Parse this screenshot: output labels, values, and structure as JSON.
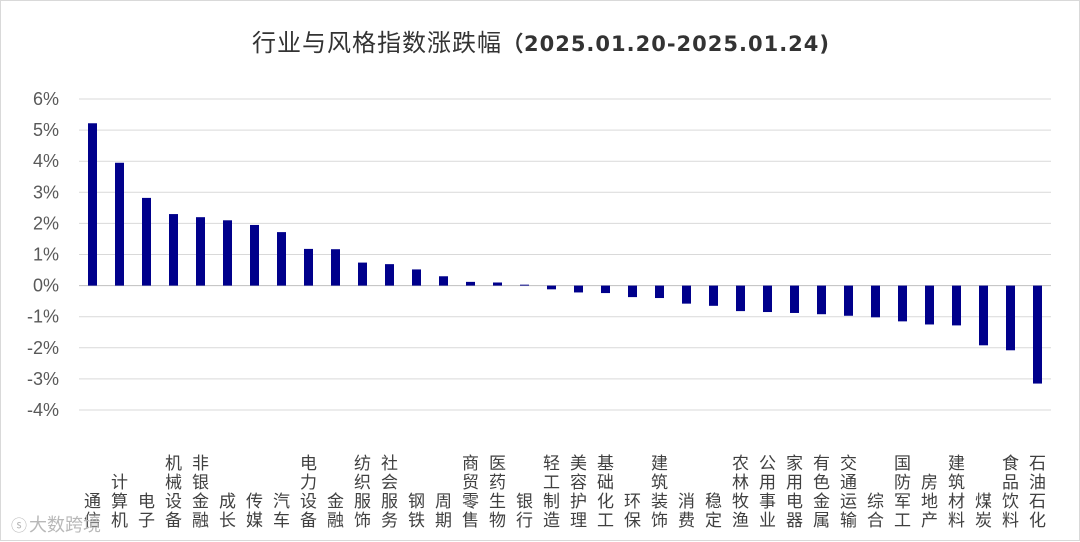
{
  "chart_data": {
    "type": "bar",
    "title": "行业与风格指数涨跌幅",
    "date_range": "（2025.01.20-2025.01.24)",
    "ylim": [
      -4,
      6
    ],
    "yticks": [
      "6%",
      "5%",
      "4%",
      "3%",
      "2%",
      "1%",
      "0%",
      "-1%",
      "-2%",
      "-3%",
      "-4%"
    ],
    "grid": true,
    "bar_color": "#00008b",
    "categories": [
      "通信",
      "计算机",
      "电子",
      "机械设备",
      "非银金融",
      "成长",
      "传媒",
      "汽车",
      "电力设备",
      "金融",
      "纺织服饰",
      "社会服务",
      "钢铁",
      "周期",
      "商贸零售",
      "医药生物",
      "银行",
      "轻工制造",
      "美容护理",
      "基础化工",
      "环保",
      "建筑装饰",
      "消费",
      "稳定",
      "农林牧渔",
      "公用事业",
      "家用电器",
      "有色金属",
      "交通运输",
      "综合",
      "国防军工",
      "房地产",
      "建筑材料",
      "煤炭",
      "食品饮料",
      "石油石化"
    ],
    "values": [
      5.22,
      3.95,
      2.82,
      2.3,
      2.2,
      2.1,
      1.95,
      1.72,
      1.18,
      1.17,
      0.74,
      0.69,
      0.52,
      0.3,
      0.12,
      0.1,
      0.03,
      -0.12,
      -0.22,
      -0.24,
      -0.37,
      -0.4,
      -0.58,
      -0.65,
      -0.82,
      -0.85,
      -0.88,
      -0.92,
      -0.97,
      -1.02,
      -1.15,
      -1.25,
      -1.28,
      -1.92,
      -2.08,
      -3.15
    ]
  },
  "watermark": {
    "logo": "ⓢ",
    "text": "大数跨境"
  }
}
